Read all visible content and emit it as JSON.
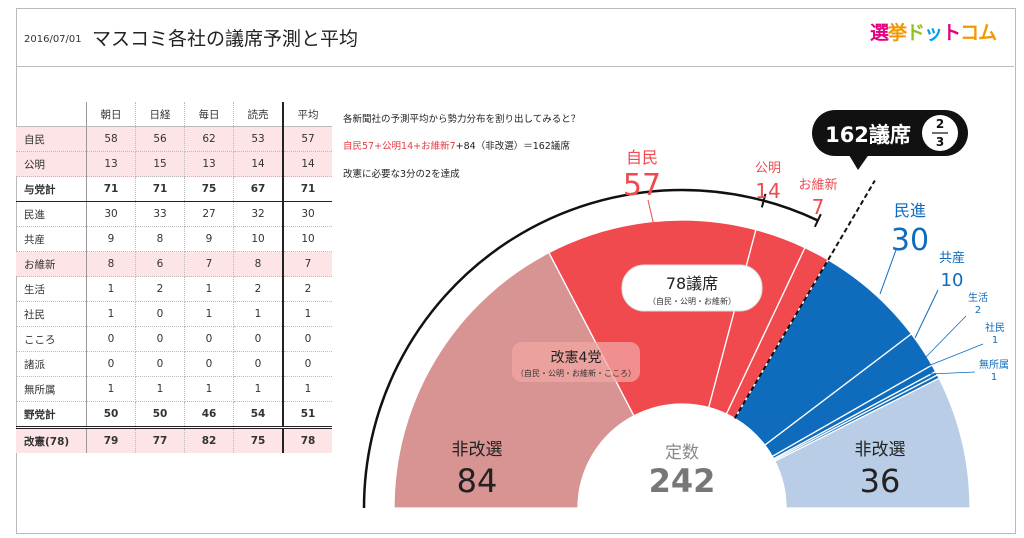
{
  "header": {
    "date": "2016/07/01",
    "title": "マスコミ各社の議席予測と平均",
    "logo": [
      "選",
      "挙",
      "ド",
      "ッ",
      "ト",
      "コム"
    ]
  },
  "table": {
    "columns": [
      "",
      "朝日",
      "日経",
      "毎日",
      "読売",
      "平均"
    ],
    "rows": [
      {
        "label": "自民",
        "values": [
          "58",
          "56",
          "62",
          "53",
          "57"
        ],
        "style": "pink"
      },
      {
        "label": "公明",
        "values": [
          "13",
          "15",
          "13",
          "14",
          "14"
        ],
        "style": "pink"
      },
      {
        "label": "与党計",
        "values": [
          "71",
          "71",
          "75",
          "67",
          "71"
        ],
        "style": "sum"
      },
      {
        "label": "民進",
        "values": [
          "30",
          "33",
          "27",
          "32",
          "30"
        ],
        "style": ""
      },
      {
        "label": "共産",
        "values": [
          "9",
          "8",
          "9",
          "10",
          "10"
        ],
        "style": ""
      },
      {
        "label": "お維新",
        "values": [
          "8",
          "6",
          "7",
          "8",
          "7"
        ],
        "style": "pink"
      },
      {
        "label": "生活",
        "values": [
          "1",
          "2",
          "1",
          "2",
          "2"
        ],
        "style": ""
      },
      {
        "label": "社民",
        "values": [
          "1",
          "0",
          "1",
          "1",
          "1"
        ],
        "style": ""
      },
      {
        "label": "こころ",
        "values": [
          "0",
          "0",
          "0",
          "0",
          "0"
        ],
        "style": ""
      },
      {
        "label": "諸派",
        "values": [
          "0",
          "0",
          "0",
          "0",
          "0"
        ],
        "style": ""
      },
      {
        "label": "無所属",
        "values": [
          "1",
          "1",
          "1",
          "1",
          "1"
        ],
        "style": ""
      },
      {
        "label": "野党計",
        "values": [
          "50",
          "50",
          "46",
          "54",
          "51"
        ],
        "style": "sum2"
      },
      {
        "label": "改憲(78)",
        "values": [
          "79",
          "77",
          "82",
          "75",
          "78"
        ],
        "style": "last"
      }
    ]
  },
  "notes": {
    "line1": "各新聞社の予測平均から勢力分布を割り出してみると？",
    "line2_red": "自民57+公明14+お維新7",
    "line2_black": "+84（非改選）＝162議席",
    "line3": "改憲に必要な3分の2を達成"
  },
  "chart_data": {
    "type": "pie",
    "variant": "semicircle-donut",
    "total_label": "定数",
    "total": 242,
    "slices": [
      {
        "name": "非改選",
        "value": 84,
        "color": "#d89393"
      },
      {
        "name": "自民",
        "value": 57,
        "color": "#f04a4f"
      },
      {
        "name": "公明",
        "value": 14,
        "color": "#f04a4f"
      },
      {
        "name": "お維新",
        "value": 7,
        "color": "#f04a4f"
      },
      {
        "name": "民進",
        "value": 30,
        "color": "#0f6cbd"
      },
      {
        "name": "共産",
        "value": 10,
        "color": "#0f6cbd"
      },
      {
        "name": "生活",
        "value": 2,
        "color": "#0f6cbd"
      },
      {
        "name": "社民",
        "value": 1,
        "color": "#0f6cbd"
      },
      {
        "name": "無所属",
        "value": 1,
        "color": "#0f6cbd"
      },
      {
        "name": "非改選",
        "value": 36,
        "color": "#b9cde6"
      }
    ],
    "threshold": {
      "value": 162,
      "label": "162議席",
      "fraction_num": "2",
      "fraction_den": "3"
    },
    "callouts": {
      "kaiken4": {
        "label": "改憲4党",
        "sub": "（自民・公明・お維新・こころ）"
      },
      "seat78": {
        "label": "78議席",
        "sub": "（自民・公明・お維新）"
      }
    }
  }
}
